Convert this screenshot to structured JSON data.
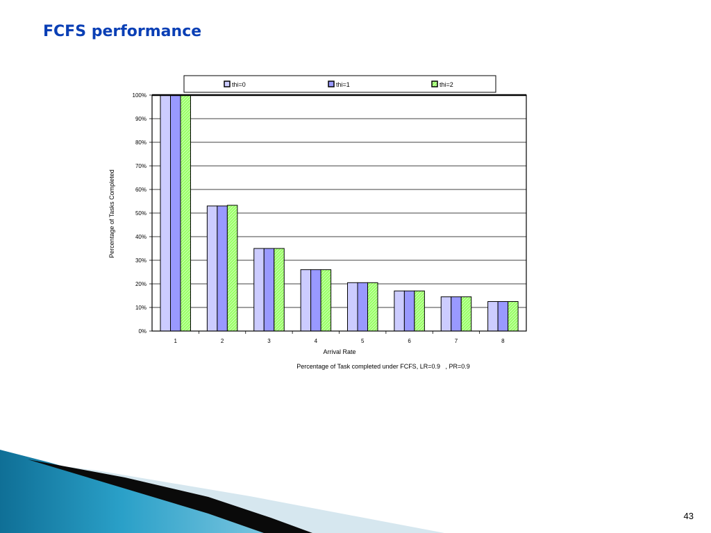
{
  "slide": {
    "title": "FCFS performance",
    "page_number": "43"
  },
  "chart_data": {
    "type": "bar",
    "xlabel": "Arrival Rate",
    "ylabel": "Percentage of Tasks Completed",
    "caption": "Percentage of Task completed under FCFS, LR=0.9   , PR=0.9",
    "categories": [
      "1",
      "2",
      "3",
      "4",
      "5",
      "6",
      "7",
      "8"
    ],
    "ylim": [
      0,
      100
    ],
    "yticks": [
      0,
      10,
      20,
      30,
      40,
      50,
      60,
      70,
      80,
      90,
      100
    ],
    "ytick_suffix": "%",
    "grid": true,
    "legend_position": "top",
    "series": [
      {
        "name": "thi=0",
        "color": "#ccccff",
        "values": [
          100,
          53,
          35,
          26,
          20.5,
          17,
          14.5,
          12.5
        ]
      },
      {
        "name": "thi=1",
        "color": "#9999ff",
        "values": [
          100,
          53,
          35,
          26,
          20.5,
          17,
          14.5,
          12.5
        ]
      },
      {
        "name": "thi=2",
        "color": "#99ff66",
        "values": [
          100,
          53.3,
          35,
          26,
          20.5,
          17,
          14.5,
          12.5
        ]
      }
    ]
  }
}
